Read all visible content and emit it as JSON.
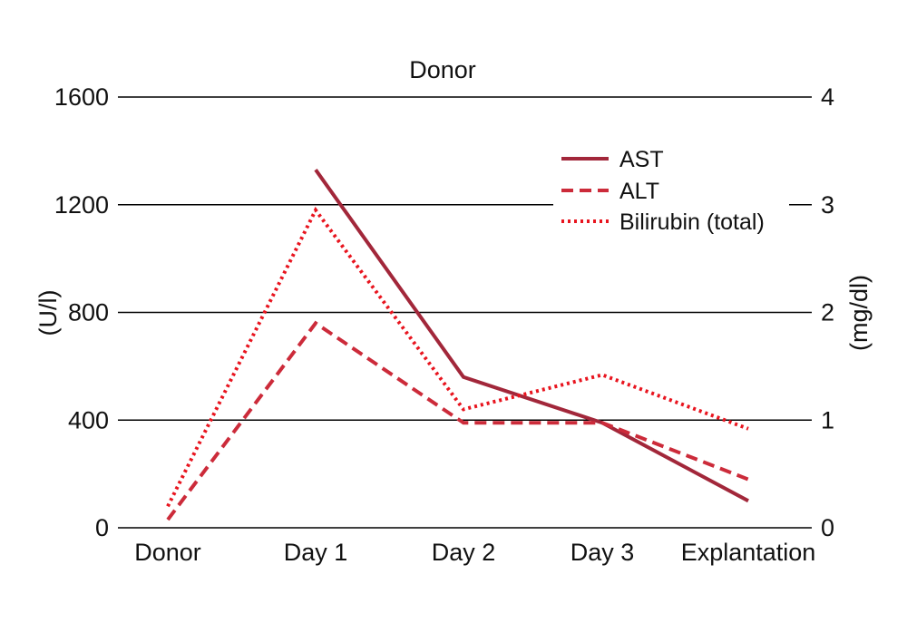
{
  "chart_data": {
    "type": "line",
    "title": "Donor",
    "categories": [
      "Donor",
      "Day 1",
      "Day 2",
      "Day 3",
      "Explantation"
    ],
    "y_left": {
      "label": "(U/l)",
      "ticks": [
        0,
        400,
        800,
        1200,
        1600
      ],
      "ylim": [
        0,
        1600
      ]
    },
    "y_right": {
      "label": "(mg/dl)",
      "ticks": [
        0,
        1,
        2,
        3,
        4
      ],
      "ylim": [
        0,
        4
      ]
    },
    "grid": "horizontal",
    "legend_position": "top-right",
    "series": [
      {
        "name": "AST",
        "axis": "left",
        "style": "solid",
        "color": "#a2273a",
        "values": [
          null,
          1330,
          560,
          390,
          100
        ]
      },
      {
        "name": "ALT",
        "axis": "left",
        "style": "dashed",
        "color": "#cc2b3a",
        "values": [
          30,
          760,
          390,
          390,
          180
        ]
      },
      {
        "name": "Bilirubin (total)",
        "axis": "right",
        "style": "dotted",
        "color": "#e8141e",
        "values": [
          0.2,
          2.95,
          1.1,
          1.42,
          0.92
        ]
      }
    ]
  }
}
